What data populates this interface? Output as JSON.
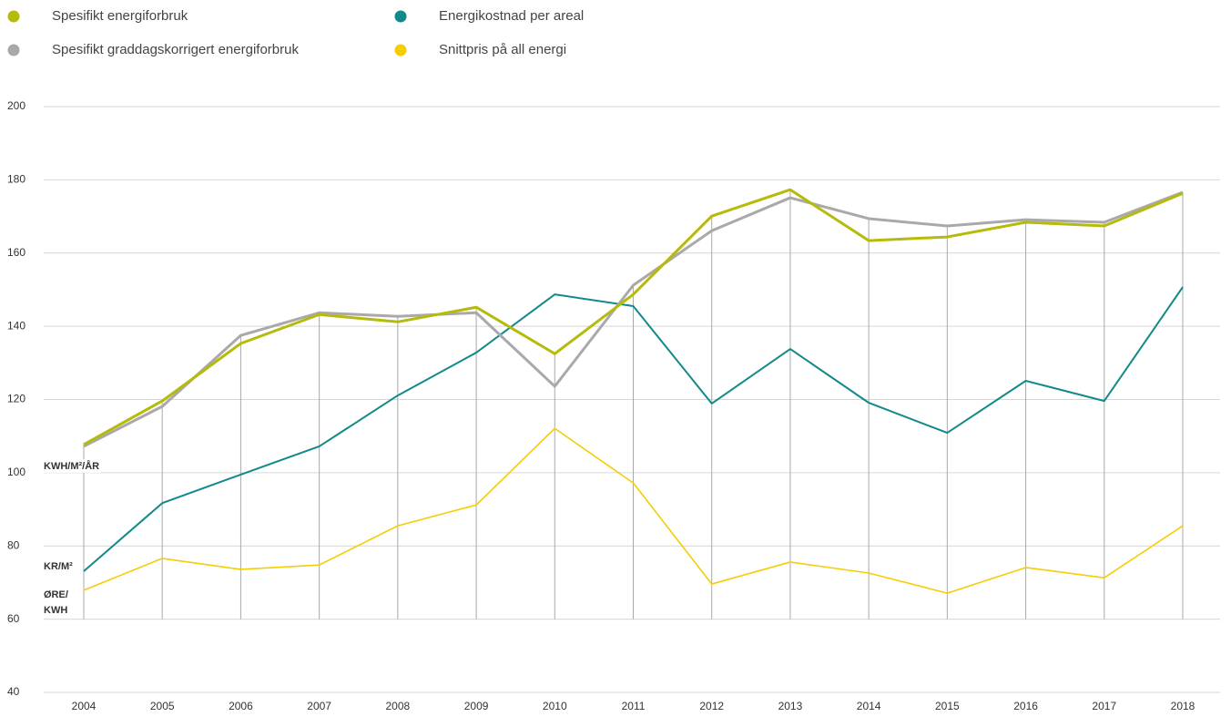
{
  "chart_data": {
    "type": "line",
    "categories": [
      "2004",
      "2005",
      "2006",
      "2007",
      "2008",
      "2009",
      "2010",
      "2011",
      "2012",
      "2013",
      "2014",
      "2015",
      "2016",
      "2017",
      "2018"
    ],
    "series": [
      {
        "name": "Spesifikt energiforbruk",
        "color": "#b5bb0a",
        "values": [
          107.7,
          119.6,
          135.3,
          143.2,
          141.2,
          145.2,
          132.5,
          148.7,
          170.1,
          177.3,
          163.4,
          164.4,
          168.4,
          167.4,
          176.3
        ]
      },
      {
        "name": "Spesifikt graddagskorrigert energiforbruk",
        "color": "#a9a9a9",
        "values": [
          107.2,
          118.1,
          137.5,
          143.7,
          142.7,
          143.7,
          123.6,
          151.2,
          166.1,
          175.1,
          169.4,
          167.4,
          169.1,
          168.4,
          176.6
        ]
      },
      {
        "name": "Energikostnad per areal",
        "color": "#12898a",
        "values": [
          73.1,
          91.7,
          99.5,
          107.2,
          121.1,
          132.8,
          148.7,
          145.5,
          118.9,
          133.8,
          119.1,
          110.9,
          125.1,
          119.6,
          150.7
        ]
      },
      {
        "name": "Snittpris på all energi",
        "color": "#f5cd05",
        "values": [
          67.9,
          76.6,
          73.6,
          74.8,
          85.5,
          91.2,
          112.1,
          97.2,
          69.6,
          75.6,
          72.6,
          67.1,
          74.1,
          71.3,
          85.5
        ]
      }
    ],
    "annotations": [
      "KWH/M²/ÅR",
      "KR/M²",
      "ØRE/",
      "KWH"
    ],
    "ylim": [
      40,
      200
    ],
    "yticks": [
      40,
      60,
      80,
      100,
      120,
      140,
      160,
      180,
      200
    ],
    "grid": true,
    "legend": "top"
  }
}
